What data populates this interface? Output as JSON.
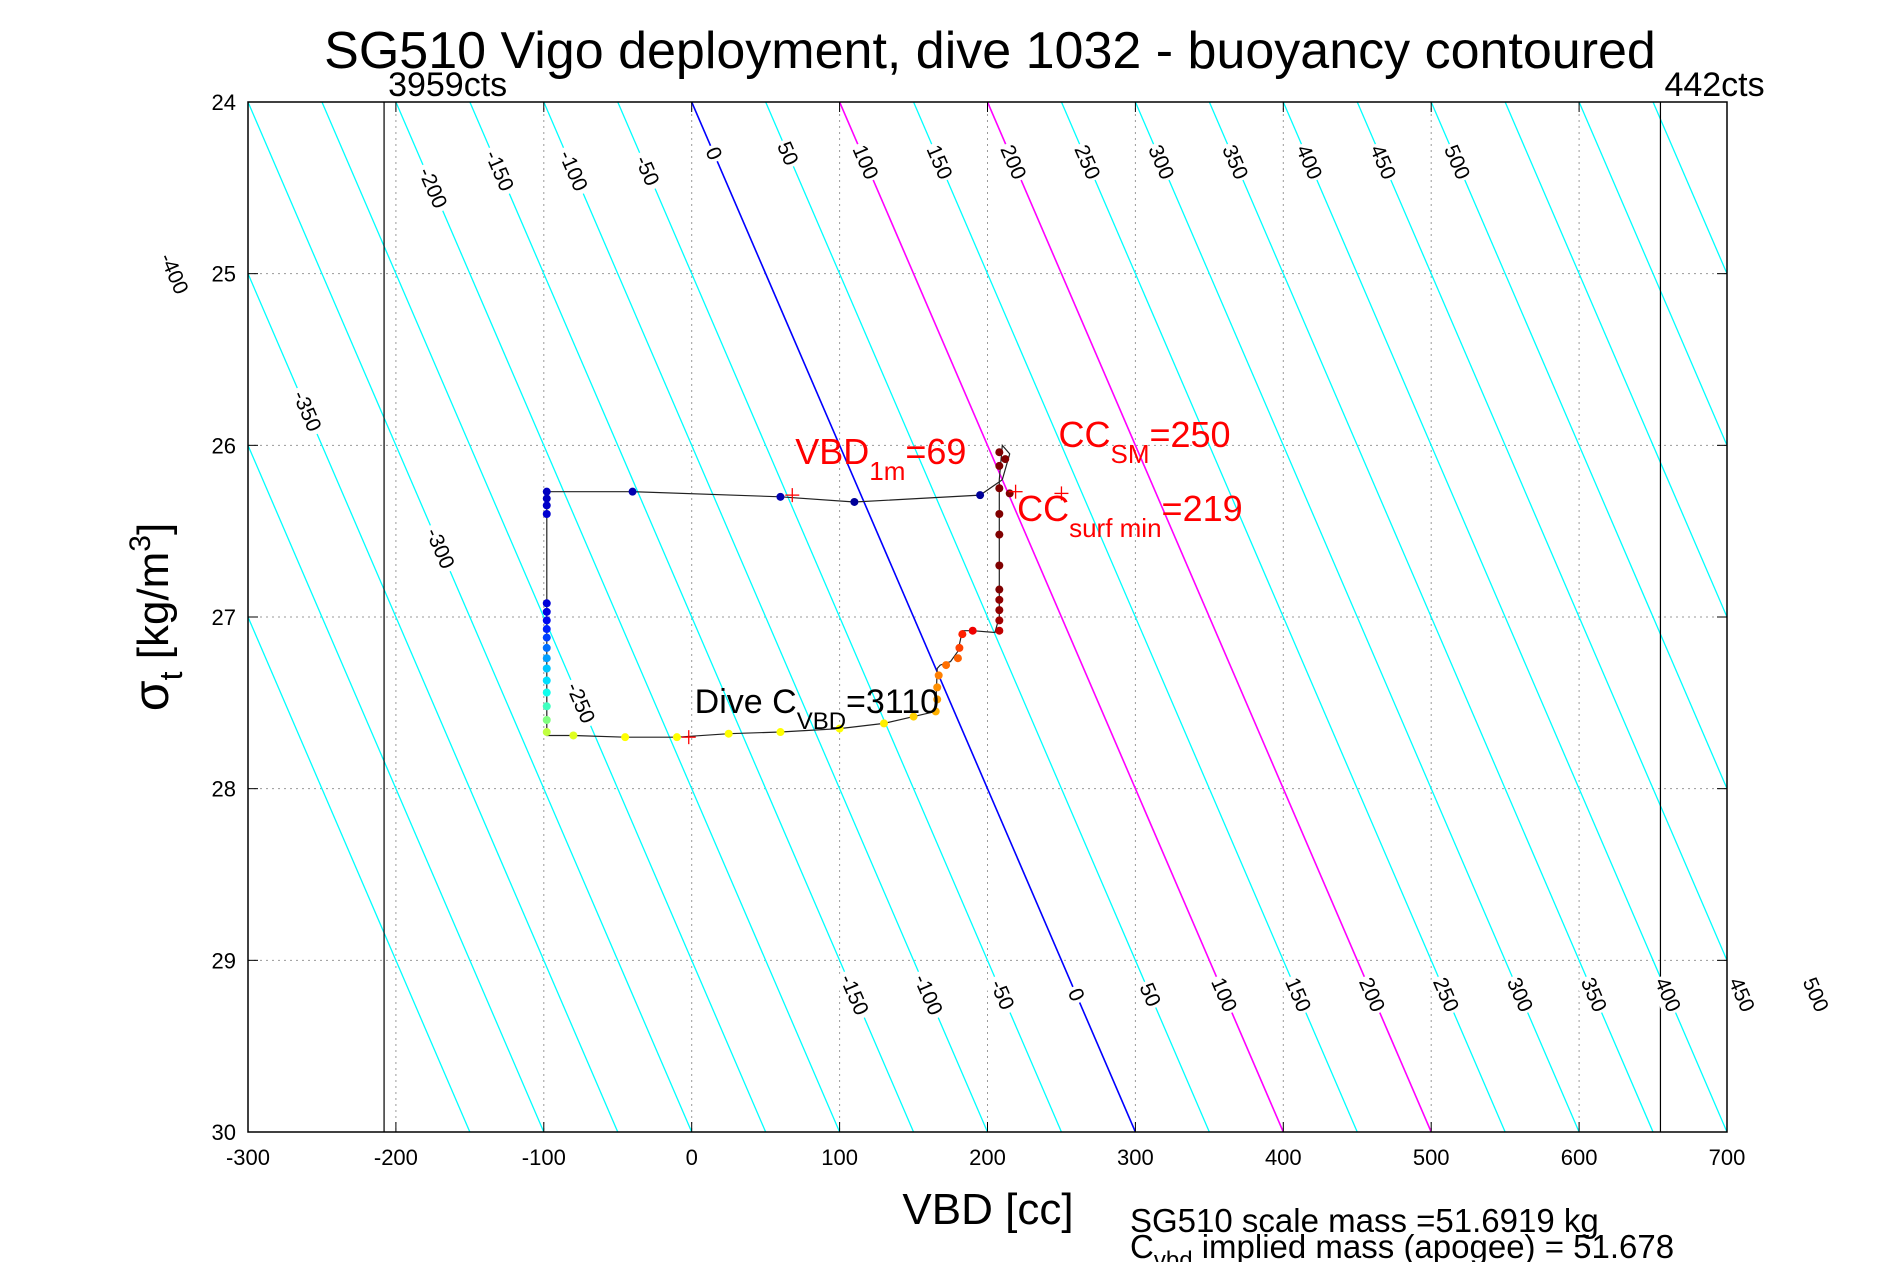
{
  "chart_data": {
    "type": "scatter",
    "title": "SG510 Vigo deployment, dive 1032 - buoyancy contoured",
    "xlabel": "VBD [cc]",
    "ylabel_main": "σ",
    "ylabel_sub": "t",
    "ylabel_units_pre": " [kg/m",
    "ylabel_units_sup": "3",
    "ylabel_units_post": "]",
    "xlim": [
      -300,
      700
    ],
    "ylim": [
      24,
      30
    ],
    "y_reversed": true,
    "grid": true,
    "x_ticks": [
      -300,
      -200,
      -100,
      0,
      100,
      200,
      300,
      400,
      500,
      600,
      700
    ],
    "y_ticks": [
      24,
      25,
      26,
      27,
      28,
      29,
      30
    ],
    "limit_lines": [
      {
        "x": -208,
        "label": "3959cts"
      },
      {
        "x": 655,
        "label": "442cts"
      }
    ],
    "contour_slope_cc_per_sigma": 50,
    "contour_levels": [
      -450,
      -400,
      -350,
      -300,
      -250,
      -200,
      -150,
      -100,
      -50,
      0,
      50,
      100,
      150,
      200,
      250,
      300,
      350,
      400,
      450,
      500,
      550,
      600,
      650
    ],
    "contour_labels_upper": {
      "levels": [
        -400,
        -350,
        -300,
        -250,
        -200,
        -150,
        -100,
        -50,
        0,
        50,
        100,
        150,
        200,
        250,
        300,
        350,
        400,
        450,
        500
      ],
      "texts": [
        "-400",
        "-350",
        "-300",
        "-250",
        "-200",
        "-150",
        "-100",
        "-50",
        "0",
        "50",
        "100",
        "150",
        "200",
        "250",
        "300",
        "350",
        "400",
        "450",
        "500"
      ],
      "y": [
        25.0,
        25.8,
        26.6,
        27.5,
        24.5,
        24.4,
        24.4,
        24.4,
        24.3,
        24.3,
        24.35,
        24.35,
        24.35,
        24.35,
        24.35,
        24.35,
        24.35,
        24.35,
        24.35
      ]
    },
    "contour_labels_lower": {
      "levels": [
        -150,
        -100,
        -50,
        0,
        50,
        100,
        150,
        200,
        250,
        300,
        350,
        400,
        450,
        500
      ],
      "texts": [
        "-150",
        "-100",
        "-50",
        "0",
        "50",
        "100",
        "150",
        "200",
        "250",
        "300",
        "350",
        "400",
        "450",
        "500"
      ],
      "y": 29.2
    },
    "highlight_contours": [
      {
        "level": 0,
        "color": "#0000ff"
      },
      {
        "level": 100,
        "color": "#ff00ff"
      },
      {
        "level": 200,
        "color": "#ff00ff"
      }
    ],
    "contour_color": "#00ffff",
    "profile_path": {
      "x": [
        210,
        195,
        110,
        60,
        -40,
        -98,
        -98,
        -98,
        -98,
        -98,
        -80,
        -45,
        -10,
        25,
        60,
        100,
        130,
        150,
        165,
        166,
        168,
        175,
        180,
        183,
        190,
        205,
        208,
        208,
        208,
        208,
        210,
        215,
        210
      ],
      "y": [
        26.2,
        26.29,
        26.33,
        26.3,
        26.27,
        26.27,
        26.45,
        26.92,
        27.3,
        27.69,
        27.69,
        27.7,
        27.7,
        27.68,
        27.67,
        27.65,
        27.62,
        27.58,
        27.55,
        27.3,
        27.28,
        27.26,
        27.2,
        27.08,
        27.08,
        27.09,
        27.0,
        26.8,
        26.5,
        26.2,
        26.0,
        26.05,
        26.2
      ]
    },
    "profile_points": [
      {
        "x": 195,
        "y": 26.29,
        "c": "#00009a"
      },
      {
        "x": 110,
        "y": 26.33,
        "c": "#00009a"
      },
      {
        "x": 60,
        "y": 26.3,
        "c": "#0000b0"
      },
      {
        "x": -40,
        "y": 26.27,
        "c": "#0000b0"
      },
      {
        "x": -98,
        "y": 26.27,
        "c": "#0000c0"
      },
      {
        "x": -98,
        "y": 26.31,
        "c": "#0000c0"
      },
      {
        "x": -98,
        "y": 26.35,
        "c": "#0000c8"
      },
      {
        "x": -98,
        "y": 26.4,
        "c": "#0000d0"
      },
      {
        "x": -98,
        "y": 26.92,
        "c": "#0000d8"
      },
      {
        "x": -98,
        "y": 26.97,
        "c": "#0000e0"
      },
      {
        "x": -98,
        "y": 27.02,
        "c": "#0008f0"
      },
      {
        "x": -98,
        "y": 27.07,
        "c": "#0020ff"
      },
      {
        "x": -98,
        "y": 27.12,
        "c": "#0040ff"
      },
      {
        "x": -98,
        "y": 27.18,
        "c": "#0070ff"
      },
      {
        "x": -98,
        "y": 27.24,
        "c": "#00a0ff"
      },
      {
        "x": -98,
        "y": 27.3,
        "c": "#00c8ff"
      },
      {
        "x": -98,
        "y": 27.37,
        "c": "#00e0ff"
      },
      {
        "x": -98,
        "y": 27.44,
        "c": "#10ffee"
      },
      {
        "x": -98,
        "y": 27.52,
        "c": "#40ffc0"
      },
      {
        "x": -98,
        "y": 27.6,
        "c": "#80ff80"
      },
      {
        "x": -98,
        "y": 27.67,
        "c": "#c0ff40"
      },
      {
        "x": -80,
        "y": 27.69,
        "c": "#e0ff20"
      },
      {
        "x": -45,
        "y": 27.7,
        "c": "#ffff00"
      },
      {
        "x": -10,
        "y": 27.7,
        "c": "#ffff00"
      },
      {
        "x": 25,
        "y": 27.68,
        "c": "#ffff00"
      },
      {
        "x": 60,
        "y": 27.67,
        "c": "#ffff00"
      },
      {
        "x": 100,
        "y": 27.65,
        "c": "#ffff00"
      },
      {
        "x": 130,
        "y": 27.62,
        "c": "#ffee00"
      },
      {
        "x": 150,
        "y": 27.58,
        "c": "#ffd000"
      },
      {
        "x": 165,
        "y": 27.55,
        "c": "#ffb000"
      },
      {
        "x": 166,
        "y": 27.48,
        "c": "#ffa000"
      },
      {
        "x": 166,
        "y": 27.41,
        "c": "#ff9000"
      },
      {
        "x": 167,
        "y": 27.34,
        "c": "#ff8000"
      },
      {
        "x": 172,
        "y": 27.28,
        "c": "#ff7000"
      },
      {
        "x": 180,
        "y": 27.24,
        "c": "#ff6000"
      },
      {
        "x": 181,
        "y": 27.18,
        "c": "#ff4000"
      },
      {
        "x": 183,
        "y": 27.1,
        "c": "#ff2000"
      },
      {
        "x": 190,
        "y": 27.08,
        "c": "#f00000"
      },
      {
        "x": 208,
        "y": 27.08,
        "c": "#c00000"
      },
      {
        "x": 208,
        "y": 27.02,
        "c": "#a00000"
      },
      {
        "x": 208,
        "y": 26.96,
        "c": "#900000"
      },
      {
        "x": 208,
        "y": 26.9,
        "c": "#900000"
      },
      {
        "x": 208,
        "y": 26.84,
        "c": "#800000"
      },
      {
        "x": 208,
        "y": 26.7,
        "c": "#800000"
      },
      {
        "x": 208,
        "y": 26.52,
        "c": "#800000"
      },
      {
        "x": 208,
        "y": 26.4,
        "c": "#800000"
      },
      {
        "x": 208,
        "y": 26.25,
        "c": "#800000"
      },
      {
        "x": 208,
        "y": 26.12,
        "c": "#800000"
      },
      {
        "x": 208,
        "y": 26.04,
        "c": "#800000"
      },
      {
        "x": 212,
        "y": 26.08,
        "c": "#800000"
      },
      {
        "x": 215,
        "y": 26.28,
        "c": "#800000"
      }
    ],
    "markers": [
      {
        "x": 68,
        "y": 26.29,
        "color": "#ff0000"
      },
      {
        "x": 250,
        "y": 26.28,
        "color": "#ff0000"
      },
      {
        "x": 219,
        "y": 26.27,
        "color": "#ff0000"
      },
      {
        "x": -2,
        "y": 27.7,
        "color": "#ff0000"
      }
    ],
    "annotations": [
      {
        "x": 70,
        "y": 26.11,
        "color": "#ff0000",
        "main": "VBD",
        "sub": "1m",
        "rest": "=69",
        "size": 36
      },
      {
        "x": 248,
        "y": 26.01,
        "color": "#ff0000",
        "main": "CC",
        "sub": "SM",
        "rest": "=250",
        "size": 36
      },
      {
        "x": 220,
        "y": 26.44,
        "color": "#ff0000",
        "main": "CC",
        "sub": "surf min",
        "rest": "=219",
        "size": 36
      },
      {
        "x": 2,
        "y": 27.56,
        "color": "#000000",
        "main": "Dive C",
        "sub": "VBD",
        "rest": "=3110",
        "size": 34
      }
    ],
    "footer_line1": "SG510 scale mass =51.6919 kg",
    "footer_line2_main": "C",
    "footer_line2_sub": "vbd",
    "footer_line2_rest": " implied mass (apogee) = 51.678"
  }
}
